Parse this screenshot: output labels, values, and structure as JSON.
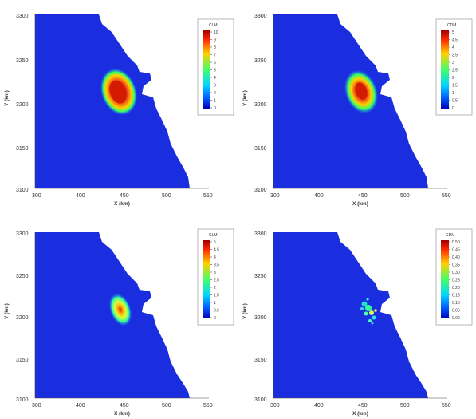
{
  "chart_data": [
    {
      "type": "heatmap",
      "title": "",
      "xlabel": "X (km)",
      "ylabel": "Y (km)",
      "xlim": [
        300,
        600
      ],
      "ylim": [
        3100,
        3300
      ],
      "xticks": [
        "300",
        "400",
        "450",
        "500",
        "550"
      ],
      "yticks": [
        "3100",
        "3150",
        "3200",
        "3250",
        "3300"
      ],
      "colorbar": {
        "title": "CLM",
        "ticks": [
          "10",
          "9",
          "8",
          "7",
          "6",
          "5",
          "4",
          "3",
          "2",
          "1",
          "0"
        ],
        "max": 10
      },
      "peak": {
        "x": 385,
        "y": 3220,
        "value": 10
      }
    },
    {
      "type": "heatmap",
      "title": "",
      "xlabel": "X (km)",
      "ylabel": "Y (km)",
      "xlim": [
        300,
        600
      ],
      "ylim": [
        3100,
        3300
      ],
      "xticks": [
        "300",
        "400",
        "450",
        "500",
        "550"
      ],
      "yticks": [
        "3100",
        "3150",
        "3200",
        "3250",
        "3300"
      ],
      "colorbar": {
        "title": "CDM",
        "ticks": [
          "5",
          "4.5",
          "4",
          "3.5",
          "3",
          "2.5",
          "2",
          "1.5",
          "1",
          "0.5",
          "0"
        ],
        "max": 5
      },
      "peak": {
        "x": 388,
        "y": 3215,
        "value": 5
      }
    },
    {
      "type": "heatmap",
      "title": "",
      "xlabel": "X (km)",
      "ylabel": "Y (km)",
      "xlim": [
        300,
        600
      ],
      "ylim": [
        3100,
        3300
      ],
      "xticks": [
        "300",
        "400",
        "450",
        "500",
        "550"
      ],
      "yticks": [
        "3100",
        "3150",
        "3200",
        "3250",
        "3300"
      ],
      "colorbar": {
        "title": "CLM",
        "ticks": [
          "5",
          "4.5",
          "4",
          "3.5",
          "3",
          "2.5",
          "2",
          "1.5",
          "1",
          "0.5",
          "0"
        ],
        "max": 5
      },
      "peak": {
        "x": 392,
        "y": 3210,
        "value": 5
      }
    },
    {
      "type": "heatmap",
      "title": "",
      "xlabel": "X (km)",
      "ylabel": "Y (km)",
      "xlim": [
        300,
        600
      ],
      "ylim": [
        3100,
        3300
      ],
      "xticks": [
        "300",
        "400",
        "450",
        "500",
        "550"
      ],
      "yticks": [
        "3100",
        "3150",
        "3200",
        "3250",
        "3300"
      ],
      "colorbar": {
        "title": "CDM",
        "ticks": [
          "0.50",
          "0.45",
          "0.40",
          "0.35",
          "0.30",
          "0.25",
          "0.20",
          "0.15",
          "0.10",
          "0.05",
          "0.00"
        ],
        "max": 0.5
      },
      "peak": {
        "x": 452,
        "y": 3205,
        "value": 0.35
      }
    }
  ]
}
